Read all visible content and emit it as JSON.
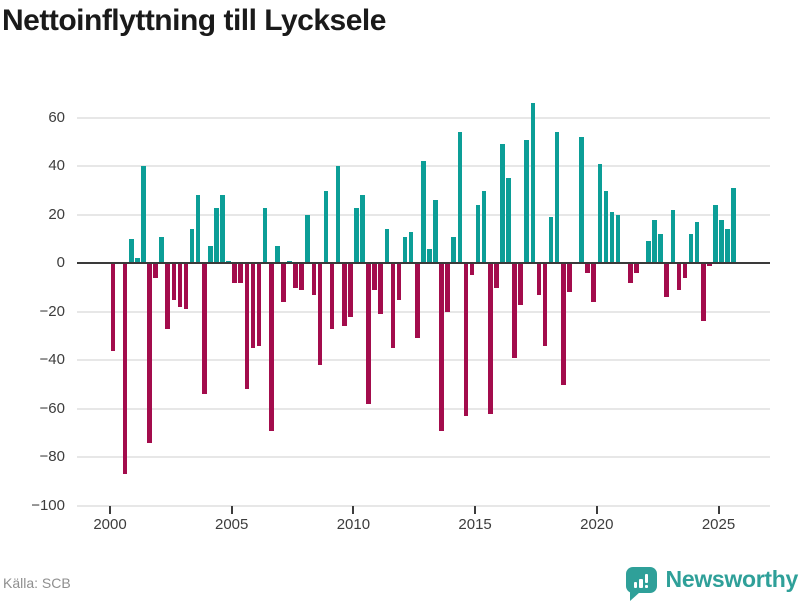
{
  "title": "Nettoinflyttning till Lycksele",
  "source": "Källa: SCB",
  "brand": {
    "name": "Newsworthy",
    "icon": "bar-chart-speech-bubble"
  },
  "colors": {
    "positive": "#0C9E97",
    "negative": "#A30C4C",
    "brand_teal": "#2FA099",
    "title_text": "#1A1A1A",
    "axis_text": "#3D3D3D",
    "source_text": "#8F8F8F",
    "gridline": "#E7E7E7",
    "zero_line": "#3A3A3A",
    "background": "#FFFFFF"
  },
  "chart_data": {
    "type": "bar",
    "title": "Nettoinflyttning till Lycksele",
    "xlabel": "",
    "ylabel": "",
    "x_tick_labels": [
      "2000",
      "2005",
      "2010",
      "2015",
      "2020",
      "2025"
    ],
    "x_tick_years": [
      2000,
      2005,
      2010,
      2015,
      2020,
      2025
    ],
    "y_ticks": [
      60,
      40,
      20,
      0,
      -20,
      -40,
      -60,
      -80,
      -100
    ],
    "ylim": [
      -100,
      70
    ],
    "grid": true,
    "legend": false,
    "periods": [
      "2000Q1",
      "2000Q2",
      "2000Q3",
      "2000Q4",
      "2001Q1",
      "2001Q2",
      "2001Q3",
      "2001Q4",
      "2002Q1",
      "2002Q2",
      "2002Q3",
      "2002Q4",
      "2003Q1",
      "2003Q2",
      "2003Q3",
      "2003Q4",
      "2004Q1",
      "2004Q2",
      "2004Q3",
      "2004Q4",
      "2005Q1",
      "2005Q2",
      "2005Q3",
      "2005Q4",
      "2006Q1",
      "2006Q2",
      "2006Q3",
      "2006Q4",
      "2007Q1",
      "2007Q2",
      "2007Q3",
      "2007Q4",
      "2008Q1",
      "2008Q2",
      "2008Q3",
      "2008Q4",
      "2009Q1",
      "2009Q2",
      "2009Q3",
      "2009Q4",
      "2010Q1",
      "2010Q2",
      "2010Q3",
      "2010Q4",
      "2011Q1",
      "2011Q2",
      "2011Q3",
      "2011Q4",
      "2012Q1",
      "2012Q2",
      "2012Q3",
      "2012Q4",
      "2013Q1",
      "2013Q2",
      "2013Q3",
      "2013Q4",
      "2014Q1",
      "2014Q2",
      "2014Q3",
      "2014Q4",
      "2015Q1",
      "2015Q2",
      "2015Q3",
      "2015Q4",
      "2016Q1",
      "2016Q2",
      "2016Q3",
      "2016Q4",
      "2017Q1",
      "2017Q2",
      "2017Q3",
      "2017Q4",
      "2018Q1",
      "2018Q2",
      "2018Q3",
      "2018Q4",
      "2019Q1",
      "2019Q2",
      "2019Q3",
      "2019Q4",
      "2020Q1",
      "2020Q2",
      "2020Q3",
      "2020Q4",
      "2021Q1",
      "2021Q2",
      "2021Q3",
      "2021Q4",
      "2022Q1",
      "2022Q2",
      "2022Q3",
      "2022Q4",
      "2023Q1",
      "2023Q2",
      "2023Q3",
      "2023Q4",
      "2024Q1",
      "2024Q2",
      "2024Q3",
      "2024Q4",
      "2025Q1",
      "2025Q2",
      "2025Q3"
    ],
    "values": [
      -36,
      0,
      -87,
      10,
      2,
      40,
      -74,
      -6,
      11,
      -27,
      -15,
      -18,
      -19,
      14,
      28,
      -54,
      7,
      23,
      28,
      1,
      -8,
      -8,
      -52,
      -35,
      -34,
      23,
      -69,
      7,
      -16,
      1,
      -10,
      -11,
      20,
      -13,
      -42,
      30,
      -27,
      40,
      -26,
      -22,
      23,
      28,
      -58,
      -11,
      -21,
      14,
      -35,
      -15,
      11,
      13,
      -31,
      42,
      6,
      26,
      -69,
      -20,
      11,
      54,
      -63,
      -5,
      24,
      30,
      -62,
      -10,
      49,
      35,
      -39,
      -17,
      51,
      66,
      -13,
      -34,
      19,
      54,
      -50,
      -12,
      0,
      52,
      -4,
      -16,
      41,
      30,
      21,
      20,
      0,
      -8,
      -4,
      0,
      9,
      18,
      12,
      -14,
      22,
      -11,
      -6,
      12,
      17,
      -24,
      -1,
      24,
      18,
      14,
      31
    ]
  }
}
